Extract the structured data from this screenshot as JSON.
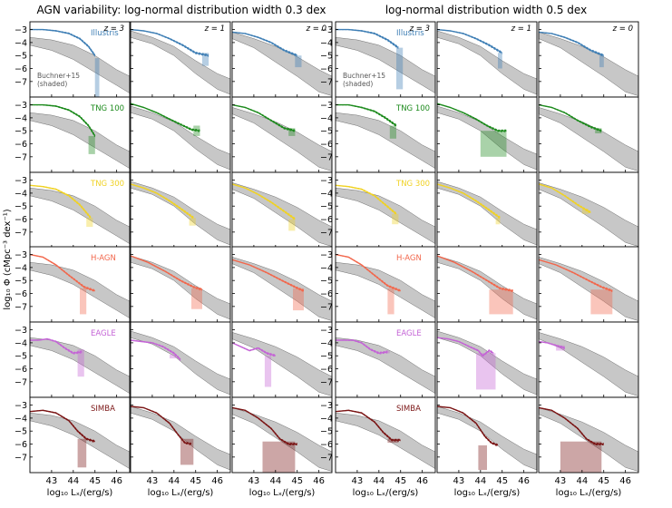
{
  "figure": {
    "left_title": "AGN variability: log-normal distribution width 0.3 dex",
    "right_title": "log-normal distribution width 0.5 dex",
    "ylabel": "log₁₀ Φ (cMpc⁻³ dex⁻¹)",
    "xlabel": "log₁₀ Lₓ/(erg/s)",
    "reference_label_line1": "Buchner+15",
    "reference_label_line2": "(shaded)"
  },
  "chart_data": {
    "type": "line",
    "panel_grid": {
      "rows": 6,
      "cols": 6
    },
    "xlim": [
      42.0,
      46.6
    ],
    "ylim": [
      -8.2,
      -2.4
    ],
    "xticks": [
      43,
      44,
      45,
      46
    ],
    "yticks": [
      -3,
      -4,
      -5,
      -6,
      -7
    ],
    "redshift_columns": [
      "z = 3",
      "z = 1",
      "z = 0"
    ],
    "simulations": [
      {
        "name": "Illustris",
        "color": "#3f7fb5"
      },
      {
        "name": "TNG 100",
        "color": "#1c8a1c"
      },
      {
        "name": "TNG 300",
        "color": "#f0d224"
      },
      {
        "name": "H-AGN",
        "color": "#f2674c"
      },
      {
        "name": "EAGLE",
        "color": "#c463d6"
      },
      {
        "name": "SIMBA",
        "color": "#7a1414"
      }
    ],
    "reference_band": {
      "name": "Buchner+15",
      "x": [
        42.0,
        43.0,
        44.0,
        45.0,
        46.0,
        46.6
      ],
      "z3_lower": [
        -4.2,
        -4.6,
        -5.3,
        -6.3,
        -7.3,
        -7.9
      ],
      "z3_upper": [
        -3.6,
        -3.8,
        -4.2,
        -5.0,
        -6.1,
        -6.6
      ],
      "z1_lower": [
        -3.6,
        -4.1,
        -5.0,
        -6.4,
        -7.6,
        -8.0
      ],
      "z1_upper": [
        -3.1,
        -3.6,
        -4.3,
        -5.4,
        -6.4,
        -6.8
      ],
      "z0_lower": [
        -3.7,
        -4.4,
        -5.5,
        -6.6,
        -7.8,
        -8.1
      ],
      "z0_upper": [
        -3.2,
        -3.7,
        -4.3,
        -5.1,
        -6.1,
        -6.6
      ]
    },
    "curves": [
      {
        "sim": "Illustris",
        "width": "0.3",
        "z": "3",
        "x": [
          42.0,
          42.6,
          43.2,
          43.8,
          44.3,
          44.7,
          45.0
        ],
        "y": [
          -3.0,
          -3.0,
          -3.1,
          -3.3,
          -3.7,
          -4.3,
          -5.0
        ],
        "tail": [
          45.0,
          45.2,
          -5.2,
          -8.2
        ]
      },
      {
        "sim": "Illustris",
        "width": "0.3",
        "z": "1",
        "x": [
          42.0,
          42.6,
          43.2,
          43.8,
          44.4,
          45.0,
          45.6
        ],
        "y": [
          -3.0,
          -3.1,
          -3.3,
          -3.7,
          -4.2,
          -4.8,
          -5.0
        ],
        "tail": [
          45.3,
          45.6,
          -4.8,
          -5.8
        ]
      },
      {
        "sim": "Illustris",
        "width": "0.3",
        "z": "0",
        "x": [
          42.0,
          42.6,
          43.2,
          43.8,
          44.4,
          45.0
        ],
        "y": [
          -3.2,
          -3.3,
          -3.6,
          -4.0,
          -4.6,
          -5.0
        ],
        "tail": [
          44.9,
          45.2,
          -5.0,
          -5.9
        ]
      },
      {
        "sim": "TNG 100",
        "width": "0.3",
        "z": "3",
        "x": [
          42.0,
          42.6,
          43.2,
          43.8,
          44.3,
          44.7,
          45.0
        ],
        "y": [
          -3.0,
          -3.0,
          -3.1,
          -3.4,
          -3.9,
          -4.6,
          -5.4
        ],
        "tail": [
          44.7,
          45.0,
          -5.4,
          -6.8
        ]
      },
      {
        "sim": "TNG 100",
        "width": "0.3",
        "z": "1",
        "x": [
          42.0,
          42.6,
          43.2,
          43.8,
          44.3,
          44.8,
          45.2
        ],
        "y": [
          -2.9,
          -3.2,
          -3.6,
          -4.1,
          -4.5,
          -4.9,
          -5.0
        ],
        "tail": [
          44.9,
          45.2,
          -4.6,
          -5.4
        ]
      },
      {
        "sim": "TNG 100",
        "width": "0.3",
        "z": "0",
        "x": [
          42.0,
          42.6,
          43.2,
          43.8,
          44.4,
          44.9
        ],
        "y": [
          -3.0,
          -3.2,
          -3.6,
          -4.2,
          -4.8,
          -5.0
        ],
        "tail": [
          44.6,
          44.9,
          -4.8,
          -5.4
        ]
      },
      {
        "sim": "TNG 300",
        "width": "0.3",
        "z": "3",
        "x": [
          42.0,
          42.6,
          43.2,
          43.8,
          44.3,
          44.8
        ],
        "y": [
          -3.4,
          -3.5,
          -3.7,
          -4.2,
          -4.9,
          -5.9
        ],
        "tail": [
          44.6,
          44.9,
          -5.9,
          -6.6
        ]
      },
      {
        "sim": "TNG 300",
        "width": "0.3",
        "z": "1",
        "x": [
          42.0,
          42.6,
          43.2,
          43.8,
          44.4,
          44.9
        ],
        "y": [
          -3.3,
          -3.6,
          -4.0,
          -4.6,
          -5.3,
          -5.9
        ],
        "tail": [
          44.7,
          45.0,
          -5.9,
          -6.5
        ]
      },
      {
        "sim": "TNG 300",
        "width": "0.3",
        "z": "0",
        "x": [
          42.0,
          42.6,
          43.2,
          43.8,
          44.4,
          44.9
        ],
        "y": [
          -3.3,
          -3.6,
          -4.1,
          -4.7,
          -5.4,
          -6.0
        ],
        "tail": [
          44.6,
          44.9,
          -6.0,
          -6.9
        ]
      },
      {
        "sim": "H-AGN",
        "width": "0.3",
        "z": "3",
        "x": [
          42.0,
          42.6,
          43.2,
          43.8,
          44.5,
          45.0
        ],
        "y": [
          -3.0,
          -3.2,
          -3.8,
          -4.6,
          -5.5,
          -5.8
        ],
        "tail": [
          44.3,
          44.6,
          -5.6,
          -7.6
        ]
      },
      {
        "sim": "H-AGN",
        "width": "0.3",
        "z": "1",
        "x": [
          42.0,
          42.8,
          43.6,
          44.3,
          44.9,
          45.3
        ],
        "y": [
          -3.1,
          -3.6,
          -4.3,
          -5.0,
          -5.5,
          -5.7
        ],
        "tail": [
          44.8,
          45.3,
          -5.6,
          -7.2
        ]
      },
      {
        "sim": "H-AGN",
        "width": "0.3",
        "z": "0",
        "x": [
          42.0,
          42.8,
          43.6,
          44.3,
          44.9,
          45.3
        ],
        "y": [
          -3.4,
          -3.8,
          -4.4,
          -5.0,
          -5.5,
          -5.8
        ],
        "tail": [
          44.8,
          45.3,
          -5.6,
          -7.3
        ]
      },
      {
        "sim": "EAGLE",
        "width": "0.3",
        "z": "3",
        "x": [
          42.0,
          42.4,
          42.8,
          43.2,
          43.6,
          44.0,
          44.4
        ],
        "y": [
          -3.8,
          -3.8,
          -3.7,
          -3.9,
          -4.4,
          -4.8,
          -4.7
        ],
        "tail": [
          44.2,
          44.5,
          -4.5,
          -6.6
        ]
      },
      {
        "sim": "EAGLE",
        "width": "0.3",
        "z": "1",
        "x": [
          42.0,
          42.5,
          43.0,
          43.5,
          44.0,
          44.3
        ],
        "y": [
          -3.8,
          -3.9,
          -4.0,
          -4.3,
          -4.8,
          -5.3
        ],
        "tail": [
          43.8,
          44.1,
          -4.9,
          -5.2
        ]
      },
      {
        "sim": "EAGLE",
        "width": "0.3",
        "z": "0",
        "x": [
          42.0,
          42.4,
          42.8,
          43.2,
          43.6,
          44.0
        ],
        "y": [
          -4.0,
          -4.3,
          -4.6,
          -4.4,
          -4.8,
          -5.0
        ],
        "tail": [
          43.5,
          43.8,
          -5.0,
          -7.4
        ]
      },
      {
        "sim": "SIMBA",
        "width": "0.3",
        "z": "3",
        "x": [
          42.0,
          42.6,
          43.2,
          43.8,
          44.2,
          44.6,
          45.0
        ],
        "y": [
          -3.5,
          -3.4,
          -3.6,
          -4.2,
          -5.0,
          -5.6,
          -5.8
        ],
        "tail": [
          44.2,
          44.6,
          -5.6,
          -7.8
        ]
      },
      {
        "sim": "SIMBA",
        "width": "0.3",
        "z": "1",
        "x": [
          42.0,
          42.6,
          43.2,
          43.8,
          44.2,
          44.5,
          44.8
        ],
        "y": [
          -3.1,
          -3.2,
          -3.6,
          -4.4,
          -5.3,
          -5.9,
          -6.0
        ],
        "tail": [
          44.3,
          44.9,
          -5.6,
          -7.6
        ]
      },
      {
        "sim": "SIMBA",
        "width": "0.3",
        "z": "0",
        "x": [
          42.0,
          42.6,
          43.2,
          43.8,
          44.2,
          44.6,
          45.0
        ],
        "y": [
          -3.2,
          -3.4,
          -4.0,
          -4.8,
          -5.6,
          -6.0,
          -6.0
        ],
        "tail": [
          43.4,
          44.9,
          -5.8,
          -8.2
        ]
      },
      {
        "sim": "Illustris",
        "width": "0.5",
        "z": "3",
        "x": [
          42.0,
          42.6,
          43.2,
          43.8,
          44.4,
          44.9
        ],
        "y": [
          -3.0,
          -3.0,
          -3.1,
          -3.3,
          -3.8,
          -4.4
        ],
        "tail": [
          44.8,
          45.1,
          -4.4,
          -7.6
        ]
      },
      {
        "sim": "Illustris",
        "width": "0.5",
        "z": "1",
        "x": [
          42.0,
          42.6,
          43.2,
          43.8,
          44.4,
          45.0
        ],
        "y": [
          -3.0,
          -3.1,
          -3.3,
          -3.7,
          -4.2,
          -4.8
        ],
        "tail": [
          44.8,
          45.0,
          -4.8,
          -6.0
        ]
      },
      {
        "sim": "Illustris",
        "width": "0.5",
        "z": "0",
        "x": [
          42.0,
          42.6,
          43.2,
          43.8,
          44.4,
          45.0
        ],
        "y": [
          -3.2,
          -3.3,
          -3.6,
          -4.0,
          -4.6,
          -5.0
        ],
        "tail": [
          44.8,
          45.0,
          -5.0,
          -5.9
        ]
      },
      {
        "sim": "TNG 100",
        "width": "0.5",
        "z": "3",
        "x": [
          42.0,
          42.6,
          43.2,
          43.8,
          44.3,
          44.8
        ],
        "y": [
          -3.0,
          -3.0,
          -3.2,
          -3.5,
          -4.0,
          -4.6
        ],
        "tail": [
          44.5,
          44.8,
          -4.6,
          -5.6
        ]
      },
      {
        "sim": "TNG 100",
        "width": "0.5",
        "z": "1",
        "x": [
          42.0,
          42.6,
          43.2,
          43.8,
          44.3,
          44.8,
          45.2
        ],
        "y": [
          -2.9,
          -3.2,
          -3.6,
          -4.1,
          -4.6,
          -5.0,
          -5.0
        ],
        "tail": [
          44.0,
          45.2,
          -5.0,
          -7.0
        ]
      },
      {
        "sim": "TNG 100",
        "width": "0.5",
        "z": "0",
        "x": [
          42.0,
          42.6,
          43.2,
          43.8,
          44.4,
          44.9
        ],
        "y": [
          -3.0,
          -3.2,
          -3.6,
          -4.2,
          -4.7,
          -5.0
        ],
        "tail": [
          44.6,
          44.9,
          -4.8,
          -5.2
        ]
      },
      {
        "sim": "TNG 300",
        "width": "0.5",
        "z": "3",
        "x": [
          42.0,
          42.6,
          43.2,
          43.8,
          44.3,
          44.8
        ],
        "y": [
          -3.4,
          -3.5,
          -3.7,
          -4.2,
          -4.9,
          -5.6
        ],
        "tail": [
          44.6,
          44.9,
          -5.6,
          -6.4
        ]
      },
      {
        "sim": "TNG 300",
        "width": "0.5",
        "z": "1",
        "x": [
          42.0,
          42.6,
          43.2,
          43.8,
          44.4,
          44.9
        ],
        "y": [
          -3.3,
          -3.6,
          -4.0,
          -4.6,
          -5.3,
          -5.9
        ],
        "tail": [
          44.7,
          44.9,
          -5.9,
          -6.4
        ]
      },
      {
        "sim": "TNG 300",
        "width": "0.5",
        "z": "0",
        "x": [
          42.0,
          42.6,
          43.2,
          43.8,
          44.4
        ],
        "y": [
          -3.3,
          -3.6,
          -4.2,
          -4.9,
          -5.5
        ],
        "tail": [
          44.0,
          44.3,
          -5.2,
          -5.6
        ]
      },
      {
        "sim": "H-AGN",
        "width": "0.5",
        "z": "3",
        "x": [
          42.0,
          42.6,
          43.2,
          43.8,
          44.4,
          45.0
        ],
        "y": [
          -3.0,
          -3.2,
          -3.8,
          -4.6,
          -5.4,
          -5.8
        ],
        "tail": [
          44.4,
          44.7,
          -5.6,
          -7.6
        ]
      },
      {
        "sim": "H-AGN",
        "width": "0.5",
        "z": "1",
        "x": [
          42.0,
          42.8,
          43.6,
          44.3,
          44.9,
          45.5
        ],
        "y": [
          -3.1,
          -3.6,
          -4.3,
          -5.0,
          -5.6,
          -5.8
        ],
        "tail": [
          44.4,
          45.5,
          -5.7,
          -7.6
        ]
      },
      {
        "sim": "H-AGN",
        "width": "0.5",
        "z": "0",
        "x": [
          42.0,
          42.8,
          43.6,
          44.3,
          44.9,
          45.4
        ],
        "y": [
          -3.4,
          -3.8,
          -4.4,
          -5.0,
          -5.5,
          -5.8
        ],
        "tail": [
          44.4,
          45.4,
          -5.7,
          -7.6
        ]
      },
      {
        "sim": "EAGLE",
        "width": "0.5",
        "z": "3",
        "x": [
          42.0,
          42.4,
          42.8,
          43.2,
          43.6,
          44.0,
          44.4
        ],
        "y": [
          -3.8,
          -3.8,
          -3.8,
          -4.0,
          -4.5,
          -4.8,
          -4.7
        ],
        "tail": [
          44.3,
          44.5,
          -4.6,
          -4.8
        ]
      },
      {
        "sim": "EAGLE",
        "width": "0.5",
        "z": "1",
        "x": [
          42.0,
          42.5,
          43.0,
          43.5,
          43.9,
          44.1,
          44.4,
          44.6
        ],
        "y": [
          -3.6,
          -3.7,
          -3.9,
          -4.3,
          -4.6,
          -5.0,
          -4.6,
          -4.8
        ],
        "tail": [
          43.8,
          44.7,
          -4.8,
          -7.6
        ]
      },
      {
        "sim": "EAGLE",
        "width": "0.5",
        "z": "0",
        "x": [
          42.0,
          42.4,
          42.8,
          43.2
        ],
        "y": [
          -3.9,
          -4.0,
          -4.2,
          -4.4
        ],
        "tail": [
          42.8,
          43.2,
          -4.2,
          -4.6
        ]
      },
      {
        "sim": "SIMBA",
        "width": "0.5",
        "z": "3",
        "x": [
          42.0,
          42.6,
          43.2,
          43.8,
          44.2,
          44.6,
          45.0
        ],
        "y": [
          -3.5,
          -3.4,
          -3.6,
          -4.3,
          -5.1,
          -5.7,
          -5.7
        ],
        "tail": [
          44.4,
          44.9,
          -5.6,
          -5.9
        ]
      },
      {
        "sim": "SIMBA",
        "width": "0.5",
        "z": "1",
        "x": [
          42.0,
          42.6,
          43.2,
          43.8,
          44.2,
          44.5,
          44.8
        ],
        "y": [
          -3.1,
          -3.2,
          -3.6,
          -4.4,
          -5.4,
          -5.9,
          -6.1
        ],
        "tail": [
          43.9,
          44.3,
          -6.1,
          -8.0
        ]
      },
      {
        "sim": "SIMBA",
        "width": "0.5",
        "z": "0",
        "x": [
          42.0,
          42.6,
          43.2,
          43.8,
          44.2,
          44.6,
          45.0
        ],
        "y": [
          -3.2,
          -3.4,
          -4.0,
          -4.8,
          -5.6,
          -6.0,
          -6.0
        ],
        "tail": [
          43.0,
          44.9,
          -5.8,
          -8.2
        ]
      }
    ]
  }
}
